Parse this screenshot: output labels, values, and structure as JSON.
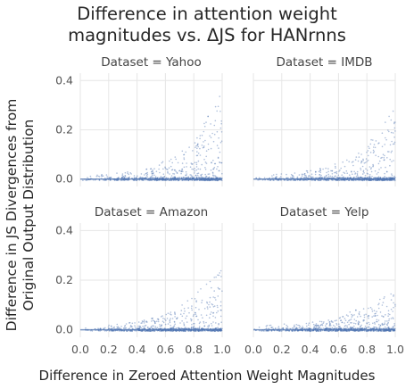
{
  "chart_data": {
    "type": "scatter",
    "title_lines": [
      "Difference in attention weight",
      "magnitudes vs. ΔJS for HANrnns"
    ],
    "xlabel": "Difference in Zeroed Attention Weight Magnitudes",
    "ylabel_lines": [
      "Difference in JS Divergences from",
      "Original Output Distribution"
    ],
    "xlim": [
      0.0,
      1.0
    ],
    "ylim": [
      -0.03,
      0.43
    ],
    "x_ticks": [
      0.0,
      0.2,
      0.4,
      0.6,
      0.8,
      1.0
    ],
    "x_tick_labels": [
      "0.0",
      "0.2",
      "0.4",
      "0.6",
      "0.8",
      "1.0"
    ],
    "y_ticks": [
      0.0,
      0.2,
      0.4
    ],
    "y_tick_labels": [
      "0.0",
      "0.2",
      "0.4"
    ],
    "grid": true,
    "point_color": "#4c72b0",
    "facets": [
      {
        "title": "Dataset = Yahoo",
        "envelope_x": [
          0.0,
          0.3,
          0.5,
          0.6,
          0.7,
          0.8,
          0.9,
          1.0
        ],
        "envelope_y": [
          0.02,
          0.03,
          0.05,
          0.08,
          0.11,
          0.16,
          0.26,
          0.38
        ]
      },
      {
        "title": "Dataset = IMDB",
        "envelope_x": [
          0.0,
          0.3,
          0.5,
          0.6,
          0.7,
          0.8,
          0.9,
          1.0
        ],
        "envelope_y": [
          0.02,
          0.03,
          0.05,
          0.07,
          0.1,
          0.14,
          0.22,
          0.32
        ]
      },
      {
        "title": "Dataset = Amazon",
        "envelope_x": [
          0.0,
          0.3,
          0.5,
          0.6,
          0.7,
          0.8,
          0.9,
          1.0
        ],
        "envelope_y": [
          0.02,
          0.03,
          0.05,
          0.07,
          0.1,
          0.14,
          0.2,
          0.26
        ]
      },
      {
        "title": "Dataset = Yelp",
        "envelope_x": [
          0.0,
          0.3,
          0.5,
          0.6,
          0.7,
          0.8,
          0.9,
          1.0
        ],
        "envelope_y": [
          0.02,
          0.03,
          0.04,
          0.06,
          0.08,
          0.1,
          0.13,
          0.16
        ]
      }
    ]
  }
}
